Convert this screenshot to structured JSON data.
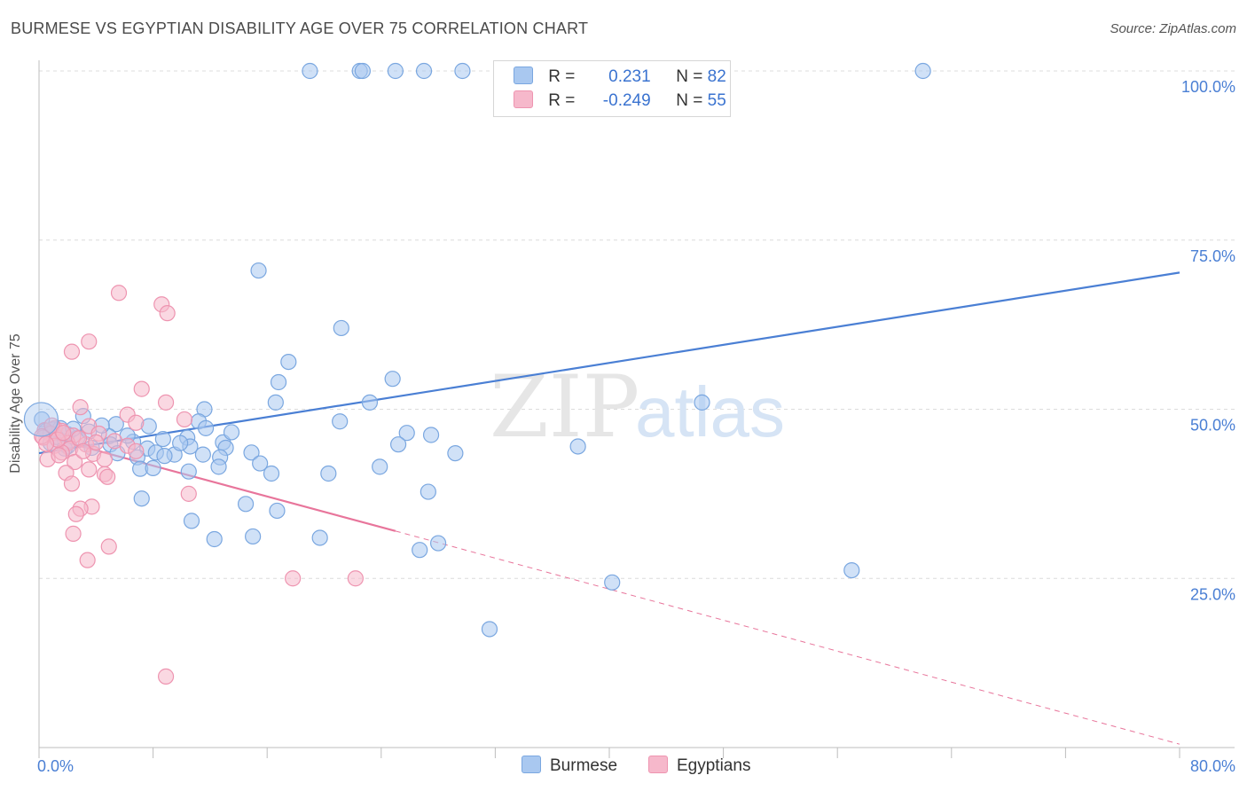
{
  "title": "BURMESE VS EGYPTIAN DISABILITY AGE OVER 75 CORRELATION CHART",
  "source": "Source: ZipAtlas.com",
  "watermark": {
    "zip": "ZIP",
    "atlas": "atlas"
  },
  "legend": {
    "rows": [
      {
        "r_label": "R =",
        "r_value": "0.231",
        "n_label": "N =",
        "n_value": "82",
        "color": "#a9c8f0"
      },
      {
        "r_label": "R =",
        "r_value": "-0.249",
        "n_label": "N =",
        "n_value": "55",
        "color": "#f6b8cb"
      }
    ]
  },
  "bottom_legend": {
    "burmese": "Burmese",
    "egyptians": "Egyptians"
  },
  "chart_data": {
    "type": "scatter",
    "title": "BURMESE VS EGYPTIAN DISABILITY AGE OVER 75 CORRELATION CHART",
    "xlabel": "",
    "ylabel": "Disability Age Over 75",
    "xlim": [
      0,
      80
    ],
    "ylim": [
      0,
      105
    ],
    "x_tick_labels": [
      "0.0%",
      "80.0%"
    ],
    "y_ticks": [
      25,
      50,
      75,
      100
    ],
    "y_tick_labels": [
      "25.0%",
      "50.0%",
      "75.0%",
      "100.0%"
    ],
    "grid": true,
    "colors": {
      "burmese": "#4a7fd4",
      "burmese_fill": "#a9c8f0",
      "egyptians": "#e8759b",
      "egyptians_fill": "#f6b8cb"
    },
    "series": [
      {
        "name": "Burmese",
        "points": [
          [
            19,
            100
          ],
          [
            22.5,
            100
          ],
          [
            22.7,
            100
          ],
          [
            25,
            100
          ],
          [
            27,
            100
          ],
          [
            29.7,
            100
          ],
          [
            62,
            100
          ],
          [
            15.4,
            70.5
          ],
          [
            21.2,
            62
          ],
          [
            17.5,
            57
          ],
          [
            16.8,
            54
          ],
          [
            24.8,
            54.5
          ],
          [
            11.6,
            50
          ],
          [
            16.6,
            51
          ],
          [
            23.2,
            51
          ],
          [
            46.5,
            51
          ],
          [
            3.1,
            49
          ],
          [
            5.4,
            47.8
          ],
          [
            7.7,
            47.5
          ],
          [
            11.2,
            48.2
          ],
          [
            21.1,
            48.2
          ],
          [
            11.7,
            47.2
          ],
          [
            25.8,
            46.5
          ],
          [
            27.5,
            46.2
          ],
          [
            1,
            47
          ],
          [
            2,
            46.3
          ],
          [
            2.7,
            45.8
          ],
          [
            4.9,
            46
          ],
          [
            8.7,
            45.6
          ],
          [
            10.4,
            45.8
          ],
          [
            12.9,
            45.1
          ],
          [
            0.8,
            45
          ],
          [
            2,
            44.5
          ],
          [
            3.7,
            44.3
          ],
          [
            5,
            44.8
          ],
          [
            7.6,
            44.2
          ],
          [
            10.6,
            44.5
          ],
          [
            13.1,
            44.3
          ],
          [
            8.2,
            43.6
          ],
          [
            9.5,
            43.3
          ],
          [
            11.5,
            43.3
          ],
          [
            12.7,
            42.9
          ],
          [
            14.9,
            43.6
          ],
          [
            15.5,
            42
          ],
          [
            29.2,
            43.5
          ],
          [
            5.5,
            43.5
          ],
          [
            6.9,
            42.9
          ],
          [
            8.8,
            43.1
          ],
          [
            25.2,
            44.8
          ],
          [
            37.8,
            44.5
          ],
          [
            12.6,
            41.5
          ],
          [
            16.3,
            40.5
          ],
          [
            20.3,
            40.5
          ],
          [
            23.9,
            41.5
          ],
          [
            7.1,
            41.2
          ],
          [
            8,
            41.3
          ],
          [
            10.5,
            40.8
          ],
          [
            27.3,
            37.8
          ],
          [
            14.5,
            36
          ],
          [
            16.7,
            35
          ],
          [
            7.2,
            36.8
          ],
          [
            10.7,
            33.5
          ],
          [
            12.3,
            30.8
          ],
          [
            15,
            31.2
          ],
          [
            19.7,
            31
          ],
          [
            26.7,
            29.2
          ],
          [
            28,
            30.2
          ],
          [
            57,
            26.2
          ],
          [
            40.2,
            24.4
          ],
          [
            31.6,
            17.5
          ],
          [
            0.2,
            48.5
          ],
          [
            1.5,
            47.2
          ],
          [
            0.5,
            46.8
          ],
          [
            1.2,
            45.9
          ],
          [
            3.5,
            46.7
          ],
          [
            6.6,
            45.2
          ],
          [
            4.4,
            47.6
          ],
          [
            9.9,
            45
          ],
          [
            13.5,
            46.6
          ],
          [
            2.4,
            47.1
          ],
          [
            6.2,
            46.1
          ],
          [
            1.8,
            44.2
          ]
        ]
      },
      {
        "name": "Egyptians",
        "points": [
          [
            5.6,
            67.2
          ],
          [
            8.6,
            65.5
          ],
          [
            9,
            64.2
          ],
          [
            3.5,
            60
          ],
          [
            2.3,
            58.5
          ],
          [
            7.2,
            53
          ],
          [
            8.9,
            51
          ],
          [
            2.9,
            50.3
          ],
          [
            6.2,
            49.2
          ],
          [
            10.2,
            48.5
          ],
          [
            6.8,
            48
          ],
          [
            3.5,
            47.5
          ],
          [
            1.1,
            47.2
          ],
          [
            0.4,
            46.9
          ],
          [
            0.8,
            46.4
          ],
          [
            1.6,
            46.8
          ],
          [
            2.4,
            46.1
          ],
          [
            0.3,
            45.8
          ],
          [
            4.2,
            46.4
          ],
          [
            5.3,
            45.3
          ],
          [
            2,
            45
          ],
          [
            1.1,
            44.6
          ],
          [
            2.2,
            44.2
          ],
          [
            3.3,
            44.8
          ],
          [
            6.2,
            44.6
          ],
          [
            1.6,
            43.6
          ],
          [
            3.8,
            43.4
          ],
          [
            0.6,
            42.6
          ],
          [
            2.5,
            42.2
          ],
          [
            4.6,
            42.6
          ],
          [
            6.8,
            43.8
          ],
          [
            3.5,
            41.1
          ],
          [
            1.9,
            40.6
          ],
          [
            4.6,
            40.4
          ],
          [
            4.8,
            40
          ],
          [
            2.3,
            39
          ],
          [
            10.5,
            37.5
          ],
          [
            3.7,
            35.6
          ],
          [
            2.9,
            35.3
          ],
          [
            2.6,
            34.5
          ],
          [
            2.4,
            31.6
          ],
          [
            4.9,
            29.7
          ],
          [
            3.4,
            27.7
          ],
          [
            17.8,
            25
          ],
          [
            22.2,
            25
          ],
          [
            8.9,
            10.5
          ],
          [
            0.2,
            46
          ],
          [
            1.3,
            45.5
          ],
          [
            0.9,
            47.6
          ],
          [
            2.8,
            45.7
          ],
          [
            1.7,
            46.5
          ],
          [
            3.1,
            43.8
          ],
          [
            0.5,
            44.9
          ],
          [
            1.4,
            43.2
          ],
          [
            4,
            45.1
          ]
        ]
      }
    ],
    "trend_lines": [
      {
        "series": "Burmese",
        "from": [
          0,
          43.5
        ],
        "to": [
          80,
          70.2
        ],
        "style": "solid"
      },
      {
        "series": "Egyptians",
        "from": [
          0,
          46.2
        ],
        "to": [
          25,
          32
        ],
        "style": "solid"
      },
      {
        "series": "Egyptians",
        "from": [
          25,
          32
        ],
        "to": [
          80,
          0.5
        ],
        "style": "dashed"
      }
    ]
  }
}
